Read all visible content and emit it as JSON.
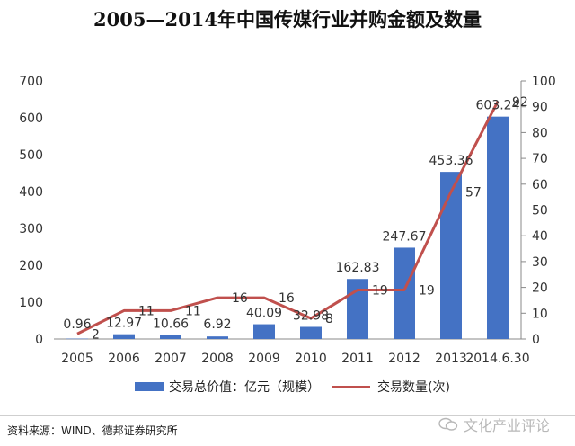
{
  "title": "2005—2014年中国传媒行业并购金额及数量",
  "legend": {
    "bar_label": "交易总价值：亿元（规模）",
    "line_label": "交易数量(次)"
  },
  "source": "资料来源：WIND、德邦证券研究所",
  "watermark": "文化产业评论",
  "colors": {
    "bar": "#4472c4",
    "line": "#c0504d"
  },
  "chart_data": {
    "type": "bar+line",
    "title": "2005—2014年中国传媒行业并购金额及数量",
    "categories": [
      "2005",
      "2006",
      "2007",
      "2008",
      "2009",
      "2010",
      "2011",
      "2012",
      "2013",
      "2014.6.30"
    ],
    "series": [
      {
        "name": "交易总价值：亿元（规模）",
        "type": "bar",
        "axis": "left",
        "values": [
          0.96,
          12.97,
          10.66,
          6.92,
          40.09,
          32.98,
          162.83,
          247.67,
          453.36,
          603.24
        ],
        "labels": [
          "0.96",
          "12.97",
          "10.66",
          "6.92",
          "40.09",
          "32.98",
          "162.83",
          "247.67",
          "453.36",
          "603.24"
        ]
      },
      {
        "name": "交易数量(次)",
        "type": "line",
        "axis": "right",
        "values": [
          2,
          11,
          11,
          16,
          16,
          8,
          19,
          19,
          57,
          92
        ],
        "labels": [
          "2",
          "11",
          "11",
          "16",
          "16",
          "8",
          "19",
          "19",
          "57",
          "92"
        ]
      }
    ],
    "y_left": {
      "min": 0,
      "max": 700,
      "ticks": [
        "0",
        "100",
        "200",
        "300",
        "400",
        "500",
        "600",
        "700"
      ]
    },
    "y_right": {
      "min": 0,
      "max": 100,
      "ticks": [
        "0",
        "10",
        "20",
        "30",
        "40",
        "50",
        "60",
        "70",
        "80",
        "90",
        "100"
      ]
    },
    "grid": false,
    "legend_position": "bottom"
  }
}
